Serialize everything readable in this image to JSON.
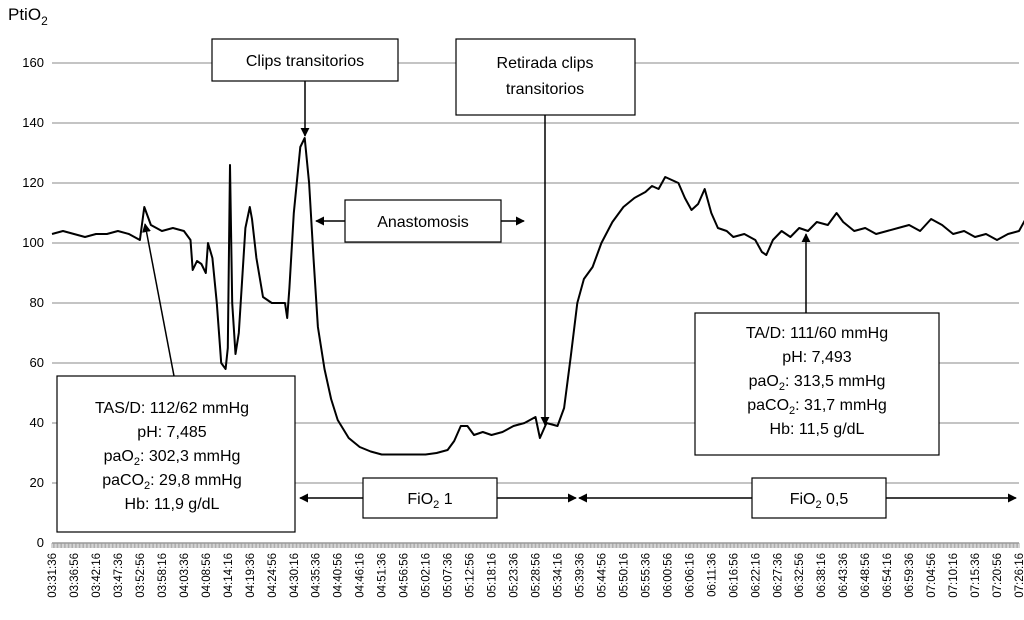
{
  "chart_data": {
    "type": "line",
    "ylabel": "PtiO",
    "ylabel_sub": "2",
    "ylim": [
      0,
      160
    ],
    "yticks": [
      "0",
      "20",
      "40",
      "60",
      "80",
      "100",
      "120",
      "140",
      "160"
    ],
    "grid": "horizontal",
    "xlabels": [
      "03:31:36",
      "03:36:56",
      "03:42:16",
      "03:47:36",
      "03:52:56",
      "03:58:16",
      "04:03:36",
      "04:08:56",
      "04:14:16",
      "04:19:36",
      "04:24:56",
      "04:30:16",
      "04:35:36",
      "04:40:56",
      "04:46:16",
      "04:51:36",
      "04:56:56",
      "05:02:16",
      "05:07:36",
      "05:12:56",
      "05:18:16",
      "05:23:36",
      "05:28:56",
      "05:34:16",
      "05:39:36",
      "05:44:56",
      "05:50:16",
      "05:55:36",
      "06:00:56",
      "06:06:16",
      "06:11:36",
      "06:16:56",
      "06:22:16",
      "06:27:36",
      "06:32:56",
      "06:38:16",
      "06:43:36",
      "06:48:56",
      "06:54:16",
      "06:59:36",
      "07:04:56",
      "07:10:16",
      "07:15:36",
      "07:20:56",
      "07:26:16"
    ],
    "series": [
      {
        "points": [
          [
            0,
            103
          ],
          [
            0.5,
            104
          ],
          [
            1,
            103
          ],
          [
            1.5,
            102
          ],
          [
            2,
            103
          ],
          [
            2.5,
            103
          ],
          [
            3,
            104
          ],
          [
            3.5,
            103
          ],
          [
            4,
            101
          ],
          [
            4.2,
            112
          ],
          [
            4.5,
            106
          ],
          [
            5,
            104
          ],
          [
            5.5,
            105
          ],
          [
            6,
            104
          ],
          [
            6.3,
            101
          ],
          [
            6.4,
            91
          ],
          [
            6.6,
            94
          ],
          [
            6.8,
            93
          ],
          [
            7.0,
            90
          ],
          [
            7.1,
            100
          ],
          [
            7.3,
            95
          ],
          [
            7.5,
            80
          ],
          [
            7.7,
            60
          ],
          [
            7.9,
            58
          ],
          [
            8.0,
            65
          ],
          [
            8.1,
            126
          ],
          [
            8.2,
            80
          ],
          [
            8.35,
            63
          ],
          [
            8.5,
            70
          ],
          [
            8.8,
            105
          ],
          [
            9.0,
            112
          ],
          [
            9.1,
            108
          ],
          [
            9.3,
            95
          ],
          [
            9.6,
            82
          ],
          [
            10,
            80
          ],
          [
            10.3,
            80
          ],
          [
            10.6,
            80
          ],
          [
            10.7,
            75
          ],
          [
            10.8,
            85
          ],
          [
            11.0,
            110
          ],
          [
            11.3,
            132
          ],
          [
            11.5,
            135
          ],
          [
            11.7,
            120
          ],
          [
            11.9,
            95
          ],
          [
            12.1,
            72
          ],
          [
            12.4,
            58
          ],
          [
            12.7,
            48
          ],
          [
            13,
            41
          ],
          [
            13.5,
            35
          ],
          [
            14,
            32
          ],
          [
            14.5,
            30.5
          ],
          [
            15,
            29.5
          ],
          [
            16,
            29.5
          ],
          [
            17,
            29.5
          ],
          [
            17.5,
            30
          ],
          [
            18,
            31
          ],
          [
            18.3,
            34
          ],
          [
            18.6,
            39
          ],
          [
            18.9,
            39
          ],
          [
            19.2,
            36
          ],
          [
            19.6,
            37
          ],
          [
            20,
            36
          ],
          [
            20.5,
            37
          ],
          [
            21,
            39
          ],
          [
            21.5,
            40
          ],
          [
            22,
            42
          ],
          [
            22.2,
            35
          ],
          [
            22.5,
            40
          ],
          [
            23,
            39
          ],
          [
            23.3,
            45
          ],
          [
            23.6,
            62
          ],
          [
            23.9,
            80
          ],
          [
            24.2,
            88
          ],
          [
            24.6,
            92
          ],
          [
            25,
            100
          ],
          [
            25.5,
            107
          ],
          [
            26,
            112
          ],
          [
            26.5,
            115
          ],
          [
            27,
            117
          ],
          [
            27.3,
            119
          ],
          [
            27.6,
            118
          ],
          [
            27.9,
            122
          ],
          [
            28.2,
            121
          ],
          [
            28.5,
            120
          ],
          [
            28.8,
            115
          ],
          [
            29.1,
            111
          ],
          [
            29.4,
            113
          ],
          [
            29.7,
            118
          ],
          [
            30,
            110
          ],
          [
            30.3,
            105
          ],
          [
            30.7,
            104
          ],
          [
            31,
            102
          ],
          [
            31.5,
            103
          ],
          [
            32,
            101
          ],
          [
            32.3,
            97
          ],
          [
            32.5,
            96
          ],
          [
            32.8,
            101
          ],
          [
            33.2,
            104
          ],
          [
            33.6,
            102
          ],
          [
            34,
            105
          ],
          [
            34.4,
            104
          ],
          [
            34.8,
            107
          ],
          [
            35.3,
            106
          ],
          [
            35.7,
            110
          ],
          [
            36,
            107
          ],
          [
            36.5,
            104
          ],
          [
            37,
            105
          ],
          [
            37.5,
            103
          ],
          [
            38,
            104
          ],
          [
            38.5,
            105
          ],
          [
            39,
            106
          ],
          [
            39.5,
            104
          ],
          [
            40,
            108
          ],
          [
            40.5,
            106
          ],
          [
            41,
            103
          ],
          [
            41.5,
            104
          ],
          [
            42,
            102
          ],
          [
            42.5,
            103
          ],
          [
            43,
            101
          ],
          [
            43.5,
            103
          ],
          [
            44,
            104
          ],
          [
            44.3,
            108
          ],
          [
            44.5,
            107
          ]
        ]
      }
    ],
    "annotations": [
      {
        "lines": [
          "Clips transitorios"
        ]
      },
      {
        "lines": [
          "Retirada clips",
          "transitorios"
        ]
      },
      {
        "lines": [
          "Anastomosis"
        ]
      }
    ],
    "info_left": [
      {
        "text": "TAS/D: 112/62 mmHg"
      },
      {
        "text": "pH: 7,485"
      },
      {
        "pre": "paO",
        "sub": "2",
        "post": ": 302,3 mmHg"
      },
      {
        "pre": "paCO",
        "sub": "2",
        "post": ": 29,8 mmHg"
      },
      {
        "text": "Hb: 11,9 g/dL"
      }
    ],
    "info_right": [
      {
        "text": "TA/D: 111/60 mmHg"
      },
      {
        "text": "pH: 7,493"
      },
      {
        "pre": "paO",
        "sub": "2",
        "post": ": 313,5 mmHg"
      },
      {
        "pre": "paCO",
        "sub": "2",
        "post": ": 31,7 mmHg"
      },
      {
        "text": "Hb: 11,5 g/dL"
      }
    ],
    "fio2_1": {
      "pre": "FiO",
      "sub": "2",
      "post": " 1"
    },
    "fio2_05": {
      "pre": "FiO",
      "sub": "2",
      "post": " 0,5"
    }
  }
}
